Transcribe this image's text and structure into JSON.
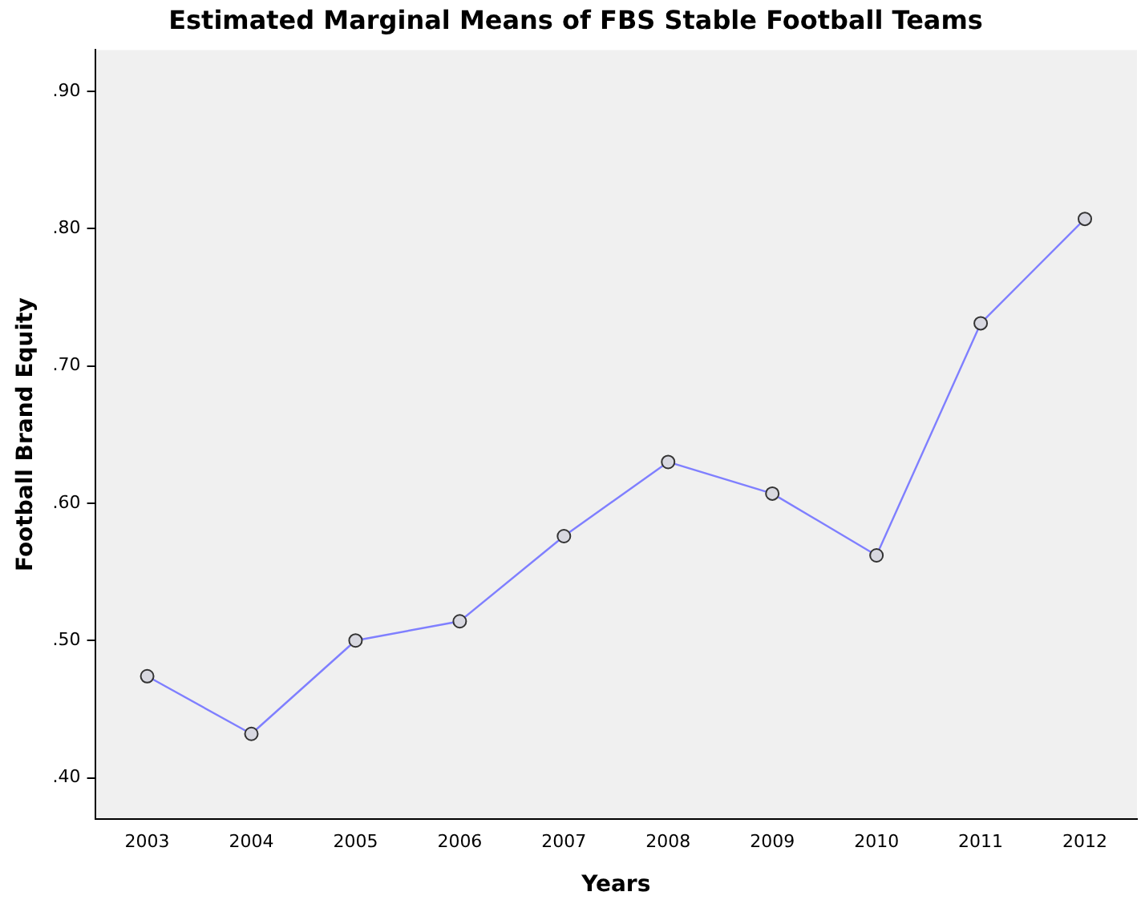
{
  "chart_data": {
    "type": "line",
    "title": "Estimated Marginal Means of FBS Stable Football Teams",
    "xlabel": "Years",
    "ylabel": "Football Brand Equity",
    "categories": [
      "2003",
      "2004",
      "2005",
      "2006",
      "2007",
      "2008",
      "2009",
      "2010",
      "2011",
      "2012"
    ],
    "series": [
      {
        "color": "#7f7fff",
        "values": [
          0.474,
          0.432,
          0.5,
          0.514,
          0.576,
          0.63,
          0.607,
          0.562,
          0.731,
          0.807
        ]
      }
    ],
    "ylim": [
      0.37,
      0.93
    ],
    "yticks": [
      {
        "value": 0.4,
        "label": ".40"
      },
      {
        "value": 0.5,
        "label": ".50"
      },
      {
        "value": 0.6,
        "label": ".60"
      },
      {
        "value": 0.7,
        "label": ".70"
      },
      {
        "value": 0.8,
        "label": ".80"
      },
      {
        "value": 0.9,
        "label": ".90"
      }
    ],
    "marker": "circle",
    "legend": false
  }
}
